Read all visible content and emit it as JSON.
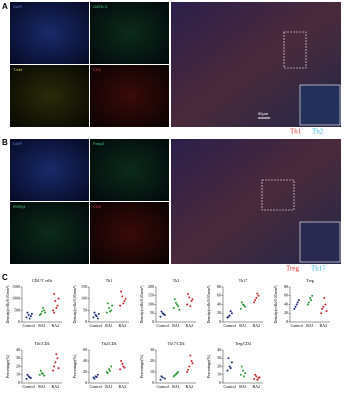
{
  "panel_a": {
    "label": "A",
    "channels": [
      "DAPI",
      "GATA-3",
      "T-bet",
      "CD4"
    ],
    "scale_bar": "50μm",
    "markers": [
      "Th1",
      "Th2"
    ]
  },
  "panel_b": {
    "label": "B",
    "channels": [
      "DAPI",
      "Foxp3",
      "RORγt",
      "CD4"
    ],
    "markers": [
      "Treg",
      "Th17"
    ]
  },
  "panel_c": {
    "label": "C",
    "plots": [
      {
        "title": "CD4⁺T cells",
        "ylabel": "Density(cells/0.05mm²)",
        "ylim": [
          0,
          1500
        ],
        "yticks": [
          0,
          500,
          1000,
          1500
        ],
        "groups": [
          {
            "name": "Control",
            "color": "#1f2f7a",
            "values": [
              200,
              300,
              250,
              400,
              150,
              350
            ]
          },
          {
            "name": "RA1",
            "color": "#2e9b3a",
            "values": [
              300,
              450,
              500,
              350,
              600,
              400
            ]
          },
          {
            "name": "RA2",
            "color": "#c8282d",
            "values": [
              500,
              900,
              700,
              1200,
              600,
              1000,
              400
            ]
          }
        ]
      },
      {
        "title": "Th1",
        "ylabel": "Density(cells/0.05mm²)",
        "ylim": [
          0,
          150
        ],
        "yticks": [
          0,
          50,
          100,
          150
        ],
        "groups": [
          {
            "name": "Control",
            "color": "#1f2f7a",
            "values": [
              20,
              30,
              15,
              40,
              25,
              35
            ]
          },
          {
            "name": "RA1",
            "color": "#2e9b3a",
            "values": [
              40,
              60,
              50,
              80,
              45,
              70
            ]
          },
          {
            "name": "RA2",
            "color": "#c8282d",
            "values": [
              70,
              110,
              90,
              130,
              80,
              100
            ]
          }
        ]
      },
      {
        "title": "Th2",
        "ylabel": "Density(cells/0.05mm²)",
        "ylim": [
          0,
          200
        ],
        "yticks": [
          0,
          50,
          100,
          150,
          200
        ],
        "groups": [
          {
            "name": "Control",
            "color": "#1f2f7a",
            "values": [
              30,
              50,
              40,
              60,
              45
            ]
          },
          {
            "name": "RA1",
            "color": "#2e9b3a",
            "values": [
              80,
              110,
              90,
              130,
              100,
              70
            ]
          },
          {
            "name": "RA2",
            "color": "#c8282d",
            "values": [
              100,
              140,
              120,
              160,
              90,
              130
            ]
          }
        ]
      },
      {
        "title": "Th17",
        "ylabel": "Density(cells/0.05mm²)",
        "ylim": [
          0,
          80
        ],
        "yticks": [
          0,
          20,
          40,
          60,
          80
        ],
        "groups": [
          {
            "name": "Control",
            "color": "#1f2f7a",
            "values": [
              10,
              15,
              20,
              12,
              25
            ]
          },
          {
            "name": "RA1",
            "color": "#2e9b3a",
            "values": [
              30,
              40,
              35,
              45,
              38
            ]
          },
          {
            "name": "RA2",
            "color": "#c8282d",
            "values": [
              45,
              55,
              60,
              50,
              65
            ]
          }
        ]
      },
      {
        "title": "Treg",
        "ylabel": "Density(cells/0.05mm²)",
        "ylim": [
          0,
          80
        ],
        "yticks": [
          0,
          20,
          40,
          60,
          80
        ],
        "groups": [
          {
            "name": "Control",
            "color": "#1f2f7a",
            "values": [
              30,
              40,
              50,
              35,
              45
            ]
          },
          {
            "name": "RA1",
            "color": "#2e9b3a",
            "values": [
              40,
              55,
              60,
              45,
              50
            ]
          },
          {
            "name": "RA2",
            "color": "#c8282d",
            "values": [
              20,
              35,
              40,
              30,
              55,
              25
            ]
          }
        ]
      },
      {
        "title": "Th1/CD4",
        "ylabel": "Percentage(%)",
        "ylim": [
          0,
          40
        ],
        "yticks": [
          0,
          10,
          20,
          30,
          40
        ],
        "groups": [
          {
            "name": "Control",
            "color": "#1f2f7a",
            "values": [
              5,
              8,
              6,
              10,
              7
            ]
          },
          {
            "name": "RA1",
            "color": "#2e9b3a",
            "values": [
              10,
              12,
              9,
              15,
              11
            ]
          },
          {
            "name": "RA2",
            "color": "#c8282d",
            "values": [
              15,
              25,
              30,
              20,
              35,
              18
            ]
          }
        ]
      },
      {
        "title": "Th2/CD4",
        "ylabel": "Percentage(%)",
        "ylim": [
          0,
          60
        ],
        "yticks": [
          0,
          20,
          40,
          60
        ],
        "groups": [
          {
            "name": "Control",
            "color": "#1f2f7a",
            "values": [
              10,
              12,
              15,
              8,
              11
            ]
          },
          {
            "name": "RA1",
            "color": "#2e9b3a",
            "values": [
              20,
              25,
              30,
              18,
              22
            ]
          },
          {
            "name": "RA2",
            "color": "#c8282d",
            "values": [
              25,
              35,
              28,
              40,
              30
            ]
          }
        ]
      },
      {
        "title": "Th17/CD4",
        "ylabel": "Percentage(%)",
        "ylim": [
          0,
          30
        ],
        "yticks": [
          0,
          10,
          20,
          30
        ],
        "groups": [
          {
            "name": "Control",
            "color": "#1f2f7a",
            "values": [
              3,
              5,
              4,
              6
            ]
          },
          {
            "name": "RA1",
            "color": "#2e9b3a",
            "values": [
              6,
              8,
              10,
              7,
              9
            ]
          },
          {
            "name": "RA2",
            "color": "#c8282d",
            "values": [
              10,
              15,
              20,
              12,
              25,
              18
            ]
          }
        ]
      },
      {
        "title": "Treg/CD4",
        "ylabel": "Percentage(%)",
        "ylim": [
          0,
          40
        ],
        "yticks": [
          0,
          10,
          20,
          30,
          40
        ],
        "groups": [
          {
            "name": "Control",
            "color": "#1f2f7a",
            "values": [
              15,
              20,
              25,
              30,
              18
            ]
          },
          {
            "name": "RA1",
            "color": "#2e9b3a",
            "values": [
              10,
              15,
              12,
              20,
              8
            ]
          },
          {
            "name": "RA2",
            "color": "#c8282d",
            "values": [
              5,
              8,
              6,
              10,
              4,
              7
            ]
          }
        ]
      }
    ]
  }
}
